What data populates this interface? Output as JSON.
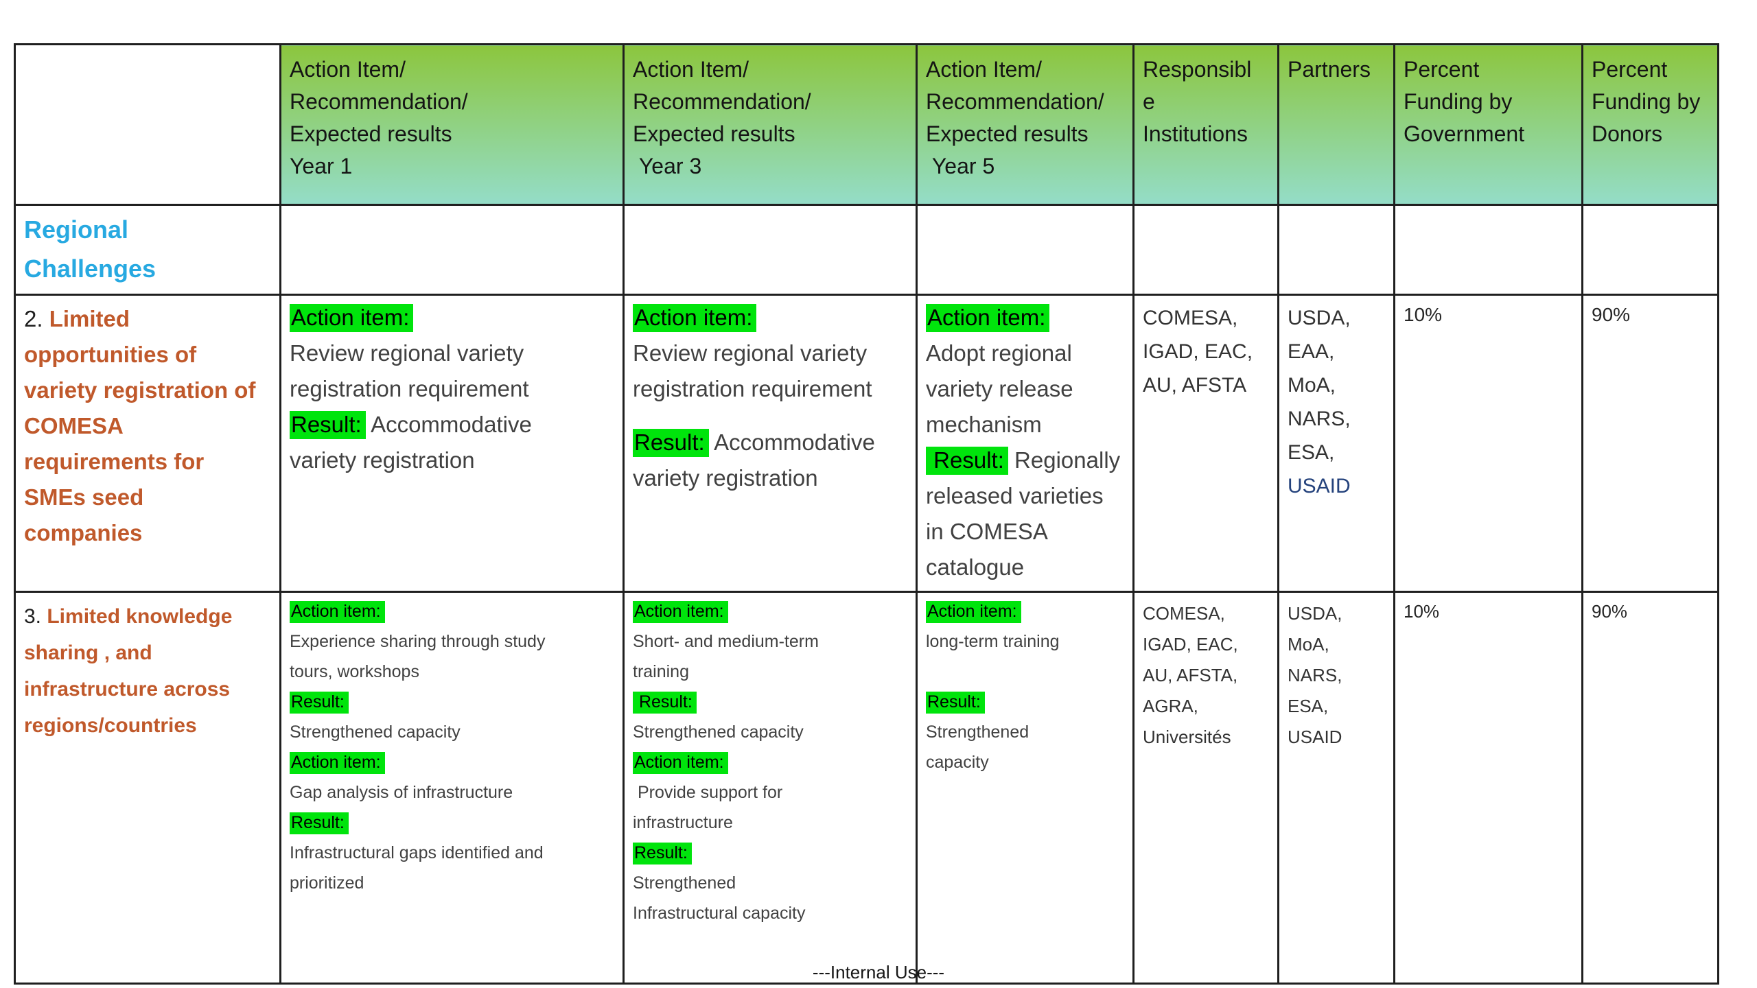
{
  "page": {
    "footer": "---Internal Use---"
  },
  "colors": {
    "highlight_green": "#00e40c",
    "challenge_text_sienna": "#c0592b",
    "regional_heading_blue": "#27a9e1",
    "usaid_blue": "#24427c",
    "header_gradient_top": "#8cc63e",
    "header_gradient_bottom": "#94ddc8"
  },
  "table": {
    "header": [
      [],
      [
        [
          "Action Item/"
        ],
        [
          "Recommendation/"
        ],
        [
          "Expected results"
        ],
        [
          "Year 1"
        ]
      ],
      [
        [
          "Action Item/"
        ],
        [
          "Recommendation/"
        ],
        [
          "Expected results"
        ],
        [
          " Year 3"
        ]
      ],
      [
        [
          "Action Item/"
        ],
        [
          "Recommendation/"
        ],
        [
          "Expected results"
        ],
        [
          " Year 5"
        ]
      ],
      [
        [
          "Responsibl"
        ],
        [
          "e"
        ],
        [
          "Institutions"
        ]
      ],
      [
        [
          "Partners"
        ]
      ],
      [
        [
          "Percent"
        ],
        [
          "Funding by"
        ],
        [
          "Government"
        ]
      ],
      [
        [
          "Percent"
        ],
        [
          "Funding by"
        ],
        [
          "Donors"
        ]
      ]
    ],
    "rows": [
      {
        "name": "regional-challenges",
        "cells": [
          [
            [
              "Regional"
            ],
            [
              "Challenges"
            ]
          ],
          [],
          [],
          [],
          [],
          [],
          [],
          []
        ]
      },
      {
        "name": "challenge-2",
        "cells": [
          [
            [
              {
                "t": "2. ",
                "plain": true
              },
              {
                "t": "Limited"
              }
            ],
            [
              "opportunities of"
            ],
            [
              "variety registration of"
            ],
            [
              "COMESA"
            ],
            [
              "requirements for"
            ],
            [
              "SMEs seed"
            ],
            [
              "companies"
            ]
          ],
          [
            [
              {
                "t": "Action item:",
                "hl": true
              }
            ],
            [
              "Review regional variety"
            ],
            [
              "registration requirement"
            ],
            [
              {
                "t": "Result:",
                "hl": true
              },
              {
                "t": " Accommodative"
              }
            ],
            [
              "variety registration"
            ]
          ],
          [
            [
              {
                "t": "Action item:",
                "hl": true
              }
            ],
            [
              "Review regional variety"
            ],
            [
              "registration requirement"
            ],
            [],
            [
              {
                "t": "Result:",
                "hl": true
              },
              {
                "t": " Accommodative"
              }
            ],
            [
              "variety registration"
            ]
          ],
          [
            [
              {
                "t": "Action item:",
                "hl": true
              }
            ],
            [
              "Adopt regional"
            ],
            [
              "variety release"
            ],
            [
              "mechanism"
            ],
            [
              {
                "t": " Result:",
                "hl": true
              },
              {
                "t": " Regionally"
              }
            ],
            [
              "released varieties"
            ],
            [
              "in COMESA"
            ],
            [
              "catalogue"
            ]
          ],
          [
            [
              "COMESA,"
            ],
            [
              "IGAD, EAC,"
            ],
            [
              "AU, AFSTA"
            ]
          ],
          [
            [
              "USDA,"
            ],
            [
              "EAA,"
            ],
            [
              "MoA,"
            ],
            [
              "NARS,"
            ],
            [
              "ESA,"
            ],
            [
              {
                "t": "USAID",
                "blue": true
              }
            ]
          ],
          [
            [
              "10%"
            ]
          ],
          [
            [
              "90%"
            ]
          ]
        ]
      },
      {
        "name": "challenge-3",
        "cells": [
          [
            [
              {
                "t": "3. ",
                "plain": true
              },
              {
                "t": "Limited knowledge"
              }
            ],
            [
              "sharing , and"
            ],
            [
              "infrastructure across"
            ],
            [
              "regions/countries"
            ]
          ],
          [
            [
              {
                "t": "Action item:",
                "hl": true
              }
            ],
            [
              "Experience sharing through study"
            ],
            [
              "tours, workshops"
            ],
            [
              {
                "t": "Result:",
                "hl": true
              }
            ],
            [
              "Strengthened capacity"
            ],
            [
              {
                "t": "Action item:",
                "hl": true
              }
            ],
            [
              "Gap analysis of infrastructure"
            ],
            [
              {
                "t": "Result:",
                "hl": true
              }
            ],
            [
              "Infrastructural gaps identified and"
            ],
            [
              "prioritized"
            ]
          ],
          [
            [
              {
                "t": "Action item:",
                "hl": true
              }
            ],
            [
              "Short- and medium-term"
            ],
            [
              "training"
            ],
            [
              {
                "t": " Result:",
                "hl": true
              }
            ],
            [
              "Strengthened capacity"
            ],
            [
              {
                "t": "Action item:",
                "hl": true
              }
            ],
            [
              " Provide support for"
            ],
            [
              "infrastructure"
            ],
            [
              {
                "t": "Result:",
                "hl": true
              }
            ],
            [
              "Strengthened"
            ],
            [
              "Infrastructural capacity"
            ]
          ],
          [
            [
              {
                "t": "Action item:",
                "hl": true
              }
            ],
            [
              "long-term training"
            ],
            [
              " "
            ],
            [
              {
                "t": "Result:",
                "hl": true
              }
            ],
            [
              "Strengthened"
            ],
            [
              "capacity"
            ]
          ],
          [
            [
              "COMESA,"
            ],
            [
              "IGAD, EAC,"
            ],
            [
              "AU, AFSTA,"
            ],
            [
              "AGRA,"
            ],
            [
              "Universités"
            ]
          ],
          [
            [
              "USDA,"
            ],
            [
              "MoA,"
            ],
            [
              "NARS,"
            ],
            [
              "ESA,"
            ],
            [
              "USAID"
            ]
          ],
          [
            [
              "10%"
            ]
          ],
          [
            [
              "90%"
            ]
          ]
        ]
      }
    ]
  }
}
